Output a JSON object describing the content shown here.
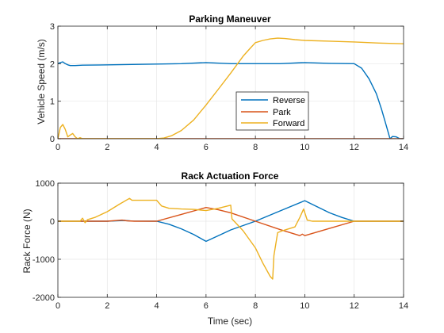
{
  "figure": {
    "background": "#ffffff",
    "axes_color": "#262626",
    "grid_color": "#e6e6e6"
  },
  "chart_data": [
    {
      "type": "line",
      "title": "Parking Maneuver",
      "xlabel": "",
      "ylabel": "Vehicle Speed (m/s)",
      "xlim": [
        0,
        14
      ],
      "ylim": [
        0,
        3
      ],
      "xticks": [
        0,
        2,
        4,
        6,
        8,
        10,
        12,
        14
      ],
      "yticks": [
        0,
        1,
        2,
        3
      ],
      "xtick_labels": [
        "0",
        "2",
        "4",
        "6",
        "8",
        "10",
        "12",
        "14"
      ],
      "ytick_labels": [
        "0",
        "1",
        "2",
        "3"
      ],
      "grid": true,
      "legend": {
        "placement": "center-right",
        "entries": [
          "Reverse",
          "Park",
          "Forward"
        ]
      },
      "series": [
        {
          "name": "Reverse",
          "color": "#0072BD",
          "x": [
            0,
            0.1,
            0.2,
            0.3,
            0.4,
            0.5,
            0.7,
            1,
            2,
            3,
            4,
            5,
            6,
            7,
            8,
            9,
            10,
            11,
            12,
            12.3,
            12.6,
            12.9,
            13.1,
            13.3,
            13.45,
            13.55,
            13.7,
            13.85,
            14
          ],
          "y": [
            2.0,
            2.03,
            2.05,
            2.0,
            1.97,
            1.95,
            1.95,
            1.96,
            1.97,
            1.98,
            1.99,
            2.0,
            2.03,
            2.0,
            2.0,
            2.0,
            2.03,
            2.01,
            2.0,
            1.88,
            1.6,
            1.2,
            0.8,
            0.35,
            0.0,
            0.06,
            0.05,
            0.0,
            0.0
          ]
        },
        {
          "name": "Park",
          "color": "#D95319",
          "x": [
            0,
            14
          ],
          "y": [
            0,
            0
          ]
        },
        {
          "name": "Forward",
          "color": "#EDB120",
          "x": [
            0,
            0.1,
            0.2,
            0.3,
            0.4,
            0.5,
            0.6,
            0.7,
            0.8,
            0.9,
            1.0,
            1.2,
            2,
            3,
            4,
            4.3,
            4.6,
            5,
            5.5,
            6,
            6.5,
            7,
            7.5,
            7.8,
            8,
            8.3,
            8.6,
            8.9,
            9.2,
            9.6,
            10,
            11,
            12,
            13,
            14
          ],
          "y": [
            0.0,
            0.3,
            0.38,
            0.25,
            0.05,
            0.1,
            0.14,
            0.05,
            0.0,
            0.03,
            0.0,
            0.0,
            0.0,
            0.0,
            0.0,
            0.02,
            0.08,
            0.22,
            0.5,
            0.9,
            1.32,
            1.75,
            2.2,
            2.42,
            2.56,
            2.62,
            2.66,
            2.68,
            2.67,
            2.64,
            2.62,
            2.6,
            2.58,
            2.55,
            2.53
          ]
        }
      ]
    },
    {
      "type": "line",
      "title": "Rack Actuation Force",
      "xlabel": "Time (sec)",
      "ylabel": "Rack Force (N)",
      "xlim": [
        0,
        14
      ],
      "ylim": [
        -2000,
        1000
      ],
      "xticks": [
        0,
        2,
        4,
        6,
        8,
        10,
        12,
        14
      ],
      "yticks": [
        -2000,
        -1000,
        0,
        1000
      ],
      "xtick_labels": [
        "0",
        "2",
        "4",
        "6",
        "8",
        "10",
        "12",
        "14"
      ],
      "ytick_labels": [
        "-2000",
        "-1000",
        "0",
        "1000"
      ],
      "grid": true,
      "series": [
        {
          "name": "Reverse",
          "color": "#0072BD",
          "x": [
            0,
            1,
            2,
            2.5,
            2.7,
            3,
            4,
            4.5,
            5,
            5.5,
            6,
            6.5,
            7,
            8,
            9,
            10,
            10.5,
            11,
            11.5,
            12,
            12.1,
            14
          ],
          "y": [
            0,
            0,
            0,
            15,
            20,
            5,
            0,
            -80,
            -200,
            -350,
            -530,
            -380,
            -230,
            0,
            270,
            540,
            380,
            220,
            100,
            0,
            0,
            0
          ]
        },
        {
          "name": "Park",
          "color": "#D95319",
          "x": [
            0,
            1,
            2,
            2.6,
            2.8,
            3.1,
            4,
            5,
            6,
            6.5,
            7,
            8,
            9,
            9.8,
            9.9,
            10,
            11,
            12,
            12.1,
            14
          ],
          "y": [
            0,
            0,
            0,
            30,
            10,
            0,
            0,
            180,
            360,
            300,
            220,
            0,
            -220,
            -380,
            -340,
            -380,
            -190,
            0,
            0,
            0
          ]
        },
        {
          "name": "Forward",
          "color": "#EDB120",
          "x": [
            0,
            0.9,
            1.0,
            1.1,
            1.2,
            1.5,
            2,
            2.5,
            2.9,
            3.0,
            3.5,
            4,
            4.2,
            4.5,
            5,
            5.5,
            6,
            6.5,
            7,
            7.05,
            7.5,
            8,
            8.3,
            8.6,
            8.7,
            8.75,
            8.9,
            9.1,
            9.3,
            9.6,
            9.8,
            9.95,
            10.1,
            10.3,
            11,
            12,
            12.5,
            14
          ],
          "y": [
            0,
            0,
            80,
            -40,
            40,
            100,
            250,
            450,
            600,
            550,
            550,
            550,
            400,
            340,
            320,
            310,
            280,
            340,
            420,
            60,
            -250,
            -700,
            -1100,
            -1450,
            -1520,
            -900,
            -300,
            -250,
            -210,
            -150,
            100,
            320,
            30,
            0,
            0,
            0,
            0,
            0
          ]
        }
      ]
    }
  ]
}
